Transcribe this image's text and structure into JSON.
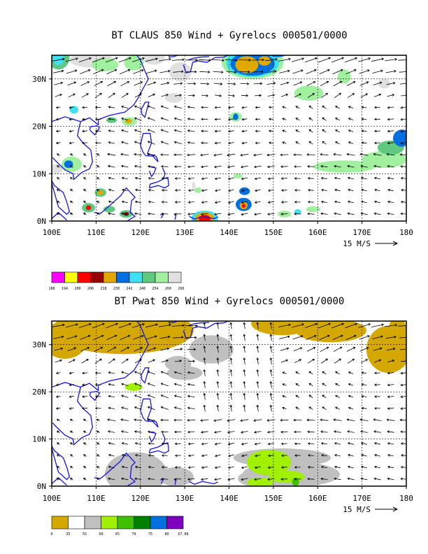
{
  "maps": [
    {
      "title": "BT CLAUS 850 Wind + Gyrelocs 000501/0000",
      "type": "clouds",
      "scale_label": "15 M/S",
      "x_ticks": [
        "100E",
        "110E",
        "120E",
        "130E",
        "140E",
        "150E",
        "160E",
        "170E",
        "180"
      ],
      "y_ticks": [
        "0N",
        "10N",
        "20N",
        "30N"
      ],
      "legend_values": [
        "188",
        "194",
        "200",
        "206",
        "218",
        "230",
        "242",
        "248",
        "254",
        "260",
        "266"
      ],
      "legend_colors": [
        "#ff00ff",
        "#ffff00",
        "#ff0000",
        "#990000",
        "#e0a800",
        "#0070e0",
        "#40e0f0",
        "#60c880",
        "#a0f0a0",
        "#e0e0e0"
      ]
    },
    {
      "title": "BT Pwat 850 Wind + Gyrelocs 000501/0000",
      "type": "pwat",
      "scale_label": "15 M/S",
      "x_ticks": [
        "100E",
        "110E",
        "120E",
        "130E",
        "140E",
        "150E",
        "160E",
        "170E",
        "180"
      ],
      "y_ticks": [
        "0N",
        "10N",
        "20N",
        "30N"
      ],
      "legend_values": [
        "0",
        "35",
        "55",
        "60",
        "65",
        "70",
        "75",
        "80",
        "67.88"
      ],
      "legend_colors": [
        "#d4a800",
        "#ffffff",
        "#c0c0c0",
        "#a0f000",
        "#40c000",
        "#008000",
        "#0070e0",
        "#8000c0"
      ]
    }
  ],
  "colors": {
    "coast": "#1414e6",
    "frame": "#000000",
    "grid": "#000000"
  }
}
